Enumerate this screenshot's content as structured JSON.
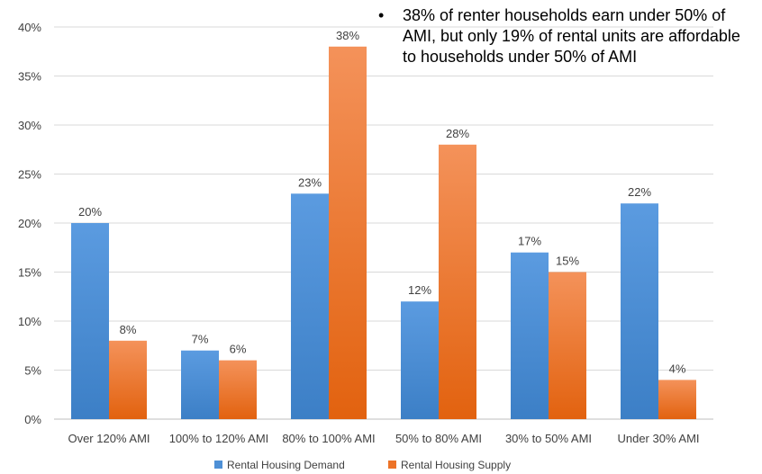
{
  "annotation": {
    "bullet": "•",
    "text": "38% of renter households earn under 50% of AMI, but only 19% of rental units are affordable to households under 50% of AMI"
  },
  "chart_data": {
    "type": "bar",
    "categories": [
      "Over 120% AMI",
      "100% to 120% AMI",
      "80% to 100% AMI",
      "50% to 80% AMI",
      "30% to 50% AMI",
      "Under 30% AMI"
    ],
    "series": [
      {
        "name": "Rental Housing Demand",
        "values": [
          20,
          7,
          23,
          12,
          17,
          22
        ],
        "color": "#4e90d6"
      },
      {
        "name": "Rental Housing Supply",
        "values": [
          8,
          6,
          38,
          28,
          15,
          4
        ],
        "color": "#ed7327"
      }
    ],
    "value_labels": [
      [
        "20%",
        "7%",
        "23%",
        "12%",
        "17%",
        "22%"
      ],
      [
        "8%",
        "6%",
        "38%",
        "28%",
        "15%",
        "4%"
      ]
    ],
    "y_ticks": [
      0,
      5,
      10,
      15,
      20,
      25,
      30,
      35,
      40
    ],
    "y_tick_labels": [
      "0%",
      "5%",
      "10%",
      "15%",
      "20%",
      "25%",
      "30%",
      "35%",
      "40%"
    ],
    "ylim": [
      0,
      40
    ],
    "grid": true,
    "legend_position": "bottom"
  }
}
